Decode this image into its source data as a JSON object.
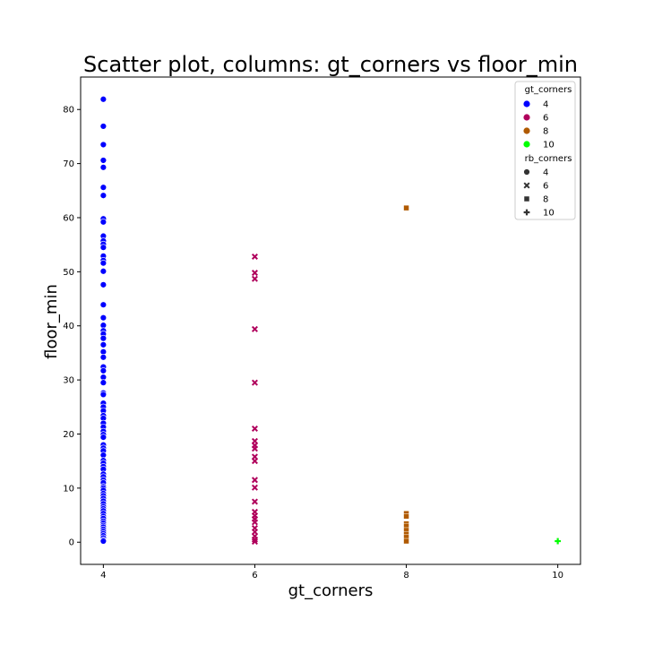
{
  "chart_data": {
    "type": "scatter",
    "title": "Scatter plot, columns: gt_corners vs floor_min",
    "xlabel": "gt_corners",
    "ylabel": "floor_min",
    "xlim": [
      3.7,
      10.3
    ],
    "ylim": [
      -4.1,
      86.0
    ],
    "x_ticks": [
      4,
      6,
      8,
      10
    ],
    "y_ticks": [
      0,
      10,
      20,
      30,
      40,
      50,
      60,
      70,
      80
    ],
    "grid": false,
    "legend": {
      "placement": "top-right",
      "hue_title": "gt_corners",
      "hue_entries": [
        {
          "label": "4",
          "color": "#0000ff"
        },
        {
          "label": "6",
          "color": "#b0005c"
        },
        {
          "label": "8",
          "color": "#b05a00"
        },
        {
          "label": "10",
          "color": "#00ff00"
        }
      ],
      "style_title": "rb_corners",
      "style_entries": [
        {
          "label": "4",
          "marker": "circle"
        },
        {
          "label": "6",
          "marker": "x"
        },
        {
          "label": "8",
          "marker": "square"
        },
        {
          "label": "10",
          "marker": "plus"
        }
      ]
    },
    "series": [
      {
        "name": "4",
        "color": "#0000ff",
        "marker": "circle",
        "x": 4,
        "values": [
          81.9,
          76.9,
          73.5,
          70.6,
          69.3,
          65.6,
          64.1,
          59.8,
          59.2,
          56.6,
          55.7,
          55.1,
          54.5,
          52.9,
          52.1,
          51.6,
          50.1,
          47.6,
          43.9,
          41.5,
          40.1,
          39.1,
          38.5,
          37.7,
          36.5,
          35.2,
          34.2,
          32.4,
          31.7,
          30.5,
          29.5,
          27.6,
          27.3,
          25.7,
          25.0,
          24.3,
          23.4,
          22.9,
          22.0,
          21.3,
          20.5,
          19.9,
          19.4,
          18.0,
          17.4,
          16.9,
          16.1,
          15.1,
          14.6,
          14.0,
          13.5,
          12.6,
          12.1,
          11.5,
          11.0,
          10.3,
          10.0,
          9.6,
          9.0,
          8.6,
          8.1,
          7.6,
          7.1,
          6.6,
          6.2,
          5.8,
          5.3,
          4.8,
          4.4,
          3.9,
          3.5,
          3.1,
          2.8,
          2.4,
          2.0,
          1.6,
          1.2,
          0.8,
          0.4,
          0.2
        ]
      },
      {
        "name": "6",
        "color": "#b0005c",
        "marker": "x",
        "x": 6,
        "values": [
          52.8,
          49.8,
          48.7,
          39.4,
          29.5,
          21.0,
          18.7,
          17.9,
          17.3,
          15.8,
          15.0,
          11.5,
          10.1,
          7.5,
          5.6,
          4.9,
          4.3,
          3.7,
          2.6,
          1.9,
          1.1,
          0.5,
          0.1
        ]
      },
      {
        "name": "8",
        "color": "#b05a00",
        "marker": "square",
        "x": 8,
        "values": [
          61.8,
          5.3,
          4.8,
          3.4,
          3.0,
          2.2,
          1.5,
          0.9,
          0.2
        ]
      },
      {
        "name": "10",
        "color": "#00ff00",
        "marker": "plus",
        "x": 10,
        "values": [
          0.2
        ]
      }
    ]
  }
}
